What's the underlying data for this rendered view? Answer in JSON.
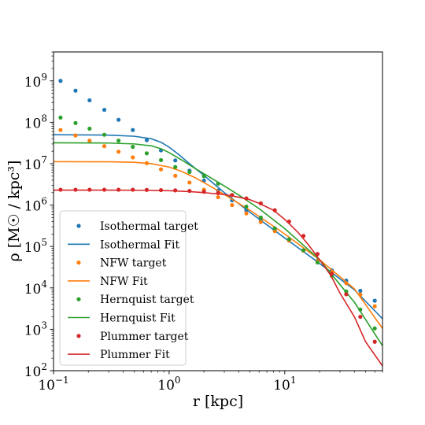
{
  "chart_data": {
    "type": "line",
    "xlabel": "r [kpc]",
    "ylabel": "ρ [M☉ / kpc³]",
    "xscale": "log",
    "yscale": "log",
    "xlim": [
      0.1,
      70
    ],
    "ylim": [
      100,
      5000000000
    ],
    "x_ticks": [
      {
        "value": 0.1,
        "base": "10",
        "exp": "−1"
      },
      {
        "value": 1,
        "base": "10",
        "exp": "0"
      },
      {
        "value": 10,
        "base": "10",
        "exp": "1"
      }
    ],
    "y_ticks": [
      {
        "value": 100,
        "base": "10",
        "exp": "2"
      },
      {
        "value": 1000,
        "base": "10",
        "exp": "3"
      },
      {
        "value": 10000,
        "base": "10",
        "exp": "4"
      },
      {
        "value": 100000,
        "base": "10",
        "exp": "5"
      },
      {
        "value": 1000000,
        "base": "10",
        "exp": "6"
      },
      {
        "value": 10000000,
        "base": "10",
        "exp": "7"
      },
      {
        "value": 100000000,
        "base": "10",
        "exp": "8"
      },
      {
        "value": 1000000000,
        "base": "10",
        "exp": "9"
      }
    ],
    "grid": false,
    "legend_position": "lower-left",
    "colors": {
      "isothermal": "#1f77b4",
      "nfw": "#ff7f0e",
      "hernquist": "#2ca02c",
      "plummer": "#d62728"
    },
    "series": [
      {
        "name": "Isothermal target",
        "kind": "scatter",
        "color": "#1f77b4",
        "x": [
          0.115,
          0.155,
          0.205,
          0.275,
          0.365,
          0.485,
          0.64,
          0.85,
          1.13,
          1.5,
          2.0,
          2.65,
          3.5,
          4.65,
          6.2,
          8.2,
          10.9,
          14.5,
          19.2,
          25.5,
          34.0,
          45.0,
          60.0
        ],
        "y": [
          1000000000.0,
          580000000.0,
          340000000.0,
          200000000.0,
          115000000.0,
          65000000.0,
          37000000.0,
          21000000.0,
          12000000.0,
          6800000.0,
          3900000.0,
          2250000.0,
          1300000.0,
          750000.0,
          430000.0,
          245000.0,
          140000.0,
          80000.0,
          46000.0,
          26500.0,
          15000.0,
          8500.0,
          4900.0
        ]
      },
      {
        "name": "Isothermal Fit",
        "kind": "line",
        "color": "#1f77b4",
        "x": [
          0.1,
          0.3,
          0.5,
          0.7,
          0.85,
          1.0,
          1.2,
          1.5,
          2.0,
          3.0,
          5.0,
          10.0,
          20.0,
          40.0,
          70.0
        ],
        "y": [
          50000000.0,
          49000000.0,
          46000000.0,
          40000000.0,
          33000000.0,
          25000000.0,
          17000000.0,
          10000000.0,
          5200000.0,
          2000000.0,
          670000.0,
          160000.0,
          39000.0,
          9000.0,
          1800.0
        ]
      },
      {
        "name": "NFW target",
        "kind": "scatter",
        "color": "#ff7f0e",
        "x": [
          0.115,
          0.155,
          0.205,
          0.275,
          0.365,
          0.485,
          0.64,
          0.85,
          1.13,
          1.5,
          2.0,
          2.65,
          3.5,
          4.65,
          6.2,
          8.2,
          10.9,
          14.5,
          19.2,
          25.5,
          34.0,
          45.0,
          60.0
        ],
        "y": [
          65000000.0,
          48000000.0,
          36000000.0,
          26500000.0,
          19500000.0,
          14200000.0,
          10300000.0,
          7300000.0,
          5100000.0,
          3500000.0,
          2350000.0,
          1550000.0,
          1000000.0,
          630000.0,
          390000.0,
          235000.0,
          138000.0,
          79000.0,
          44000.0,
          24000.0,
          13000.0,
          6900.0,
          3600.0
        ]
      },
      {
        "name": "NFW Fit",
        "kind": "line",
        "color": "#ff7f0e",
        "x": [
          0.1,
          0.3,
          0.5,
          0.7,
          1.0,
          1.3,
          1.7,
          2.2,
          3.0,
          5.0,
          10.0,
          20.0,
          40.0,
          70.0
        ],
        "y": [
          11200000.0,
          11100000.0,
          10800000.0,
          10000000.0,
          8300000.0,
          6400000.0,
          4500000.0,
          3000000.0,
          1800000.0,
          750000.0,
          200000.0,
          48000.0,
          9500.0,
          1050.0
        ]
      },
      {
        "name": "Hernquist target",
        "kind": "scatter",
        "color": "#2ca02c",
        "x": [
          0.115,
          0.155,
          0.205,
          0.275,
          0.365,
          0.485,
          0.64,
          0.85,
          1.13,
          1.5,
          2.0,
          2.65,
          3.5,
          4.65,
          6.2,
          8.2,
          10.9,
          14.5,
          19.2,
          25.5,
          34.0,
          45.0,
          60.0
        ],
        "y": [
          130000000.0,
          96000000.0,
          70000000.0,
          50000000.0,
          36000000.0,
          25500000.0,
          17800000.0,
          12200000.0,
          8300000.0,
          6300000.0,
          5000000.0,
          3300000.0,
          1750000.0,
          920000.0,
          500000.0,
          275000.0,
          150000.0,
          81000.0,
          41000.0,
          19500.0,
          8200.0,
          3000.0,
          1050.0
        ]
      },
      {
        "name": "Hernquist Fit",
        "kind": "line",
        "color": "#2ca02c",
        "x": [
          0.1,
          0.3,
          0.5,
          0.7,
          0.85,
          1.0,
          1.3,
          1.7,
          2.2,
          3.0,
          4.0,
          6.0,
          10.0,
          20.0,
          40.0,
          70.0
        ],
        "y": [
          32000000.0,
          31500000.0,
          30000000.0,
          27000000.0,
          23000000.0,
          18500000.0,
          12000000.0,
          7500000.0,
          4900000.0,
          2900000.0,
          1750000.0,
          820000.0,
          270000.0,
          48000.0,
          4500.0,
          400.0
        ]
      },
      {
        "name": "Plummer target",
        "kind": "scatter",
        "color": "#d62728",
        "x": [
          0.115,
          0.155,
          0.205,
          0.275,
          0.365,
          0.485,
          0.64,
          0.85,
          1.13,
          1.5,
          2.0,
          2.65,
          3.5,
          4.65,
          6.2,
          8.2,
          10.9,
          14.5,
          19.2,
          25.5,
          34.0,
          45.0,
          60.0
        ],
        "y": [
          2350000.0,
          2350000.0,
          2350000.0,
          2350000.0,
          2350000.0,
          2350000.0,
          2330000.0,
          2300000.0,
          2270000.0,
          2200000.0,
          2100000.0,
          1950000.0,
          1750000.0,
          1450000.0,
          1100000.0,
          750000.0,
          400000.0,
          180000.0,
          66000.0,
          22000.0,
          7000.0,
          2000.0,
          500.0
        ]
      },
      {
        "name": "Plummer Fit",
        "kind": "line",
        "color": "#d62728",
        "x": [
          0.1,
          0.3,
          0.6,
          1.0,
          1.5,
          2.0,
          3.0,
          4.0,
          5.0,
          6.0,
          8.0,
          10.0,
          13.0,
          16.0,
          20.0,
          25.0,
          30.0,
          40.0,
          50.0,
          70.0
        ],
        "y": [
          2300000.0,
          2300000.0,
          2280000.0,
          2220000.0,
          2120000.0,
          2000000.0,
          1800000.0,
          1550000.0,
          1350000.0,
          1100000.0,
          750000.0,
          450000.0,
          220000.0,
          110000.0,
          48000.0,
          20000.0,
          7500.0,
          2000.0,
          500.0,
          130.0
        ]
      }
    ]
  }
}
